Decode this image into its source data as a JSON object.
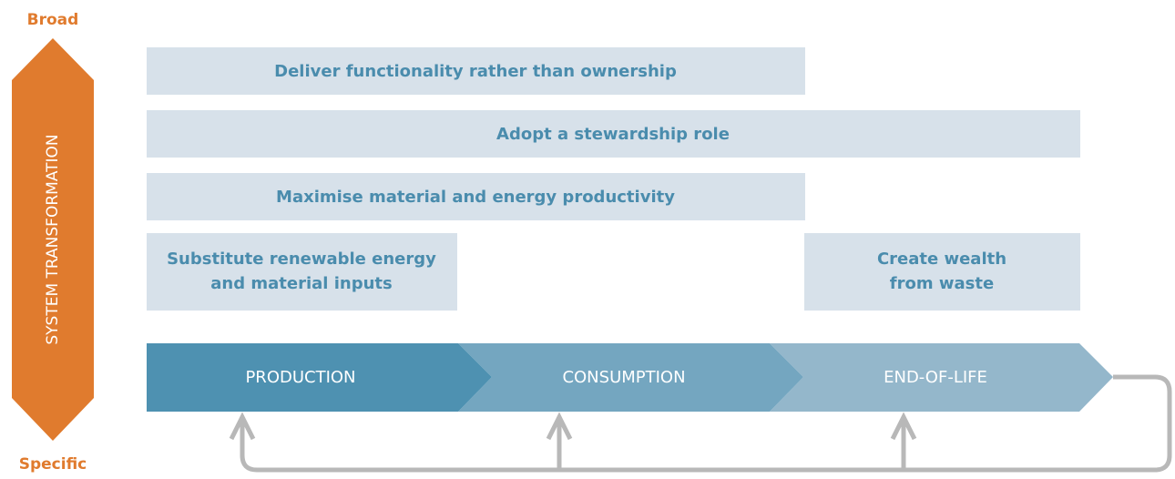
{
  "axis": {
    "top": "Broad",
    "bottom": "Specific",
    "label": "SYSTEM TRANSFORMATION"
  },
  "boxes": [
    {
      "lines": [
        "Deliver functionality rather than ownership"
      ]
    },
    {
      "lines": [
        "Adopt a stewardship role"
      ]
    },
    {
      "lines": [
        "Maximise material and energy productivity"
      ]
    },
    {
      "lines": [
        "Substitute renewable energy",
        "and material inputs"
      ]
    },
    {
      "lines": [
        "Create wealth",
        "from waste"
      ]
    }
  ],
  "stages": [
    "PRODUCTION",
    "CONSUMPTION",
    "END-OF-LIFE"
  ]
}
